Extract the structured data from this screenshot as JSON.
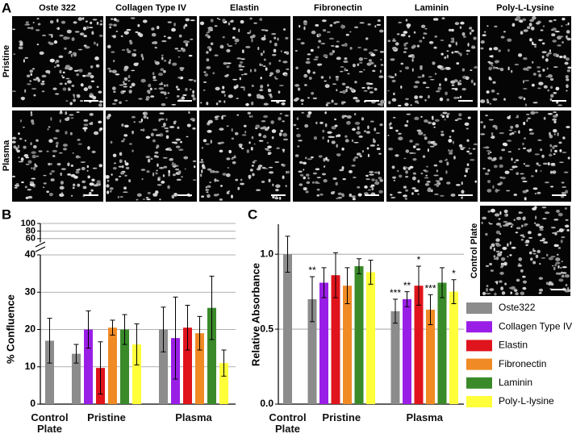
{
  "panel_a": {
    "label": "A",
    "columns": [
      "Oste 322",
      "Collagen Type IV",
      "Elastin",
      "Fibronectin",
      "Laminin",
      "Poly-L-Lysine"
    ],
    "rows": [
      "Pristine",
      "Plasma"
    ]
  },
  "chart_data": [
    {
      "type": "bar",
      "panel_label": "B",
      "y_label": "% Confluence",
      "categories": [
        "Control Plate",
        "Pristine",
        "Plasma"
      ],
      "ylim": [
        0,
        40
      ],
      "yticks": [
        0,
        10,
        20,
        30,
        40
      ],
      "upper_ylim": [
        50,
        100
      ],
      "upper_yticks": [
        60,
        80,
        100
      ],
      "grid": true,
      "series": [
        {
          "color": "#8c8c8c",
          "values": [
            17,
            13.5,
            20
          ],
          "errors": [
            6,
            2.5,
            6
          ]
        },
        {
          "color": "#9a1fe6",
          "values": [
            null,
            20,
            17.7
          ],
          "errors": [
            null,
            5,
            11
          ]
        },
        {
          "color": "#e0141c",
          "values": [
            null,
            9.7,
            20.5
          ],
          "errors": [
            null,
            7,
            6
          ]
        },
        {
          "color": "#f08a24",
          "values": [
            null,
            20.5,
            19
          ],
          "errors": [
            null,
            2,
            4.5
          ]
        },
        {
          "color": "#3a8a2a",
          "values": [
            null,
            20,
            25.8
          ],
          "errors": [
            null,
            4,
            8.5
          ]
        },
        {
          "color": "#ffff3a",
          "values": [
            null,
            16,
            11
          ],
          "errors": [
            null,
            5.5,
            3.5
          ]
        }
      ]
    },
    {
      "type": "bar",
      "panel_label": "C",
      "y_label": "Relative Absorbance",
      "inset_label": "Control Plate",
      "categories": [
        "Control Plate",
        "Pristine",
        "Plasma"
      ],
      "ylim": [
        0,
        1.2
      ],
      "yticks": [
        {
          "value": 0,
          "label": "0.0"
        },
        0.5,
        {
          "value": 1,
          "label": "1.0"
        }
      ],
      "grid": true,
      "series": [
        {
          "name": "Oste322",
          "color": "#8c8c8c",
          "values": [
            1.0,
            0.7,
            0.62
          ],
          "errors": [
            0.12,
            0.15,
            0.08
          ],
          "significance": [
            null,
            "**",
            "***"
          ]
        },
        {
          "name": "Collagen Type IV",
          "color": "#9a1fe6",
          "values": [
            null,
            0.81,
            0.7
          ],
          "errors": [
            null,
            0.1,
            0.05
          ],
          "significance": [
            null,
            null,
            "**"
          ]
        },
        {
          "name": "Elastin",
          "color": "#e0141c",
          "values": [
            null,
            0.86,
            0.79
          ],
          "errors": [
            null,
            0.15,
            0.13
          ],
          "significance": [
            null,
            null,
            "*"
          ]
        },
        {
          "name": "Fibronectin",
          "color": "#f08a24",
          "values": [
            null,
            0.79,
            0.63
          ],
          "errors": [
            null,
            0.12,
            0.1
          ],
          "significance": [
            null,
            null,
            "***"
          ]
        },
        {
          "name": "Laminin",
          "color": "#3a8a2a",
          "values": [
            null,
            0.92,
            0.81
          ],
          "errors": [
            null,
            0.05,
            0.1
          ],
          "significance": [
            null,
            null,
            null
          ]
        },
        {
          "name": "Poly-L-lysine",
          "color": "#ffff3a",
          "values": [
            null,
            0.88,
            0.75
          ],
          "errors": [
            null,
            0.08,
            0.08
          ],
          "significance": [
            null,
            null,
            "*"
          ]
        }
      ]
    }
  ]
}
